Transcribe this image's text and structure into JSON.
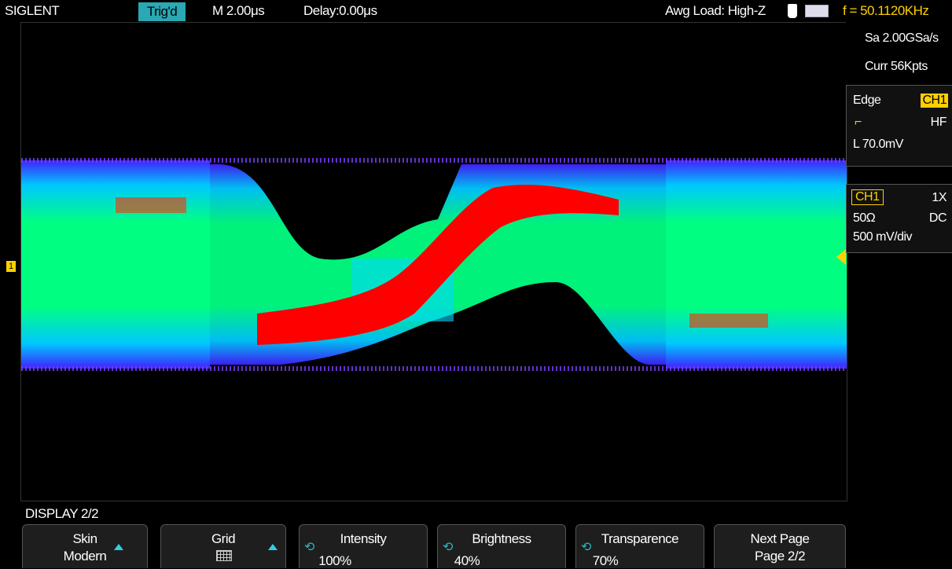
{
  "header": {
    "brand": "SIGLENT",
    "trigger_status": "Trig'd",
    "timebase": "M 2.00μs",
    "delay": "Delay:0.00μs",
    "awg_load": "Awg Load: High-Z",
    "frequency": "f = 50.1120KHz"
  },
  "acquisition": {
    "sample_rate": "Sa 2.00GSa/s",
    "memory": "Curr 56Kpts"
  },
  "trigger": {
    "type": "Edge",
    "source": "CH1",
    "coupling": "HF",
    "level": "L  70.0mV"
  },
  "channel": {
    "name": "CH1",
    "probe": "1X",
    "impedance": "50Ω",
    "coupling": "DC",
    "scale": "500 mV/div"
  },
  "menu": {
    "title": "DISPLAY 2/2",
    "softkeys": [
      {
        "label": "Skin",
        "value": "Modern"
      },
      {
        "label": "Grid",
        "value": ""
      },
      {
        "label": "Intensity",
        "value": "100%"
      },
      {
        "label": "Brightness",
        "value": "40%"
      },
      {
        "label": "Transparence",
        "value": "70%"
      },
      {
        "label": "Next Page",
        "value": "Page 2/2"
      }
    ]
  },
  "markers": {
    "channel_marker": "1"
  },
  "colors": {
    "accent_cyan": "#2aa8b3",
    "ch1_yellow": "#ffd000",
    "waveform_hot": "#ff0000",
    "waveform_warm": "#00ff40",
    "waveform_cool": "#00c8ff",
    "waveform_cold": "#4020ff"
  }
}
